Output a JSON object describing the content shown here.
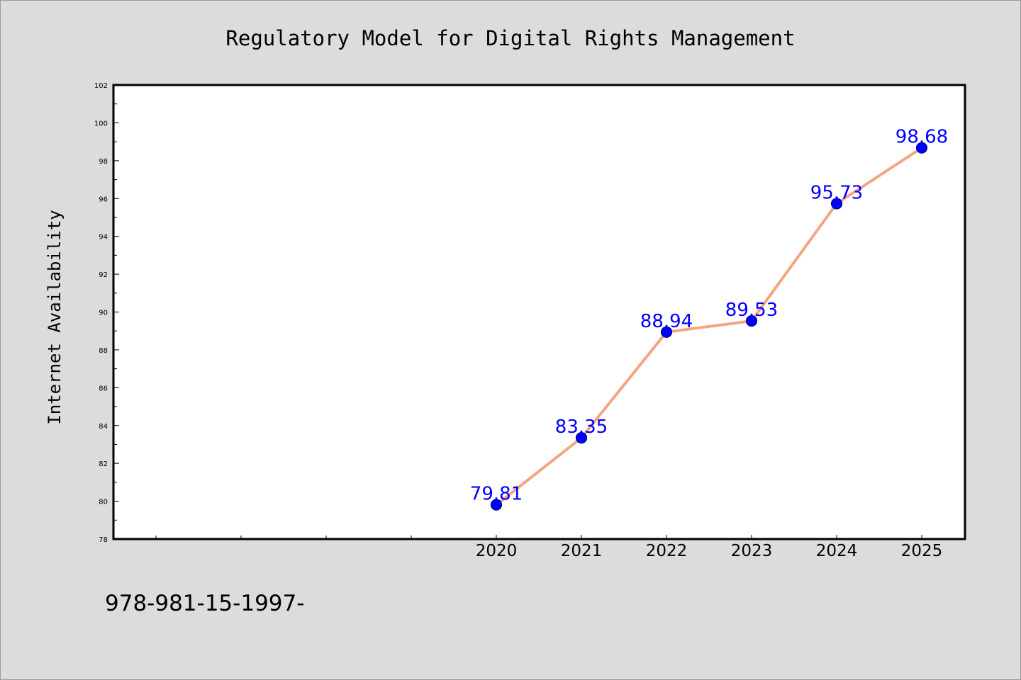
{
  "chart_data": {
    "type": "line",
    "title": "Regulatory Model for Digital Rights Management",
    "xlabel": "",
    "ylabel": "Internet Availability",
    "x": [
      "2020",
      "2021",
      "2022",
      "2023",
      "2024",
      "2025"
    ],
    "series": [
      {
        "values": [
          79.81,
          83.35,
          88.94,
          89.53,
          95.73,
          98.68
        ],
        "labels": [
          "79.81",
          "83.35",
          "88.94",
          "89.53",
          "95.73",
          "98.68"
        ],
        "line_color": "#f4a582",
        "marker_color": "#0000ff"
      }
    ],
    "ylim": [
      78,
      102
    ],
    "yticks": [
      "78",
      "80",
      "82",
      "84",
      "86",
      "88",
      "90",
      "92",
      "94",
      "96",
      "98",
      "100",
      "102"
    ],
    "grid": false,
    "legend": "none",
    "data_label_color": "#0000ff"
  },
  "footer": {
    "text": "978-981-15-1997-"
  }
}
